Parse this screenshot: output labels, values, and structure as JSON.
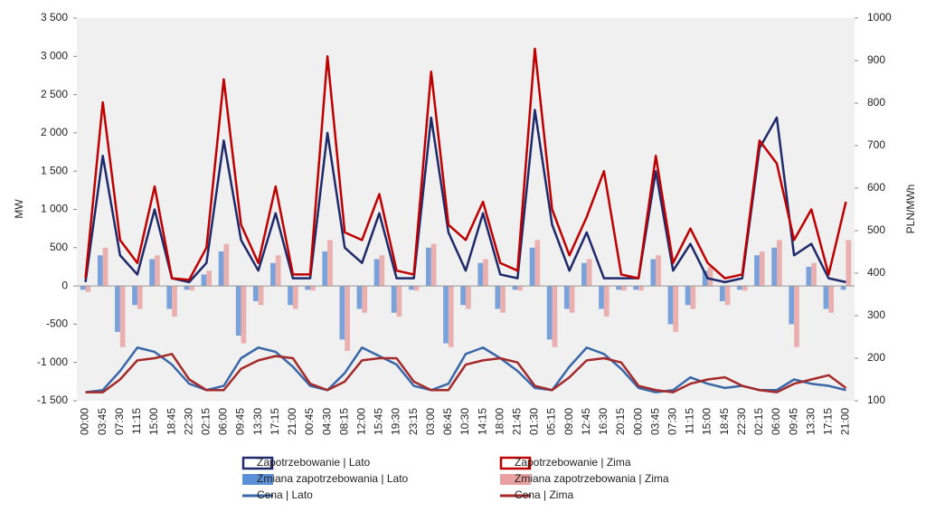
{
  "chart_data": {
    "type": "combo",
    "y_label": "MW",
    "y2_label": "PLN/MWh",
    "categories": [
      "00:00",
      "03:45",
      "07:30",
      "11:15",
      "15:00",
      "18:45",
      "22:30",
      "02:15",
      "06:00",
      "09:45",
      "13:30",
      "17:15",
      "21:00",
      "00:45",
      "04:30",
      "08:15",
      "12:00",
      "15:45",
      "19:30",
      "23:15",
      "03:00",
      "06:45",
      "10:30",
      "14:15",
      "18:00",
      "21:45",
      "01:30",
      "05:15",
      "09:00",
      "12:45",
      "16:30",
      "20:15",
      "00:00",
      "03:45",
      "07:30",
      "11:15",
      "15:00",
      "18:45",
      "22:30",
      "02:15",
      "06:00",
      "09:45",
      "13:30",
      "17:15",
      "21:00"
    ],
    "series": [
      {
        "name": "Zapotrzebowanie | Lato",
        "type": "line",
        "color": "#1f2a6b",
        "values": [
          50,
          1700,
          400,
          150,
          1000,
          100,
          50,
          300,
          1900,
          600,
          200,
          950,
          100,
          100,
          2000,
          500,
          300,
          950,
          100,
          100,
          2200,
          700,
          200,
          950,
          150,
          100,
          2300,
          800,
          200,
          700,
          100,
          100,
          100,
          1500,
          200,
          550,
          100,
          50,
          100,
          1800,
          2200,
          400,
          550,
          100,
          50
        ]
      },
      {
        "name": "Zapotrzebowanie | Zima",
        "type": "line",
        "color": "#c00000",
        "values": [
          100,
          2400,
          600,
          300,
          1300,
          100,
          80,
          500,
          2700,
          800,
          300,
          1300,
          150,
          150,
          3000,
          700,
          600,
          1200,
          200,
          150,
          2800,
          800,
          600,
          1100,
          300,
          200,
          3100,
          1000,
          400,
          900,
          1500,
          150,
          100,
          1700,
          300,
          750,
          300,
          100,
          150,
          1900,
          1600,
          600,
          1000,
          150,
          1100
        ]
      },
      {
        "name": "Zmiana zapotrzebowania | Lato",
        "type": "bar",
        "color": "#5b8fd6",
        "values": [
          -50,
          400,
          -600,
          -250,
          350,
          -300,
          -50,
          150,
          450,
          -650,
          -200,
          300,
          -250,
          -50,
          450,
          -700,
          -300,
          350,
          -350,
          -50,
          500,
          -750,
          -250,
          300,
          -300,
          -50,
          500,
          -700,
          -300,
          300,
          -300,
          -50,
          -50,
          350,
          -500,
          -250,
          200,
          -200,
          -50,
          400,
          500,
          -500,
          250,
          -300,
          -50
        ]
      },
      {
        "name": "Zmiana zapotrzebowania | Zima",
        "type": "bar",
        "color": "#e8a0a0",
        "values": [
          -80,
          500,
          -800,
          -300,
          400,
          -400,
          -60,
          200,
          550,
          -750,
          -250,
          400,
          -300,
          -60,
          600,
          -850,
          -350,
          400,
          -400,
          -60,
          550,
          -800,
          -300,
          350,
          -350,
          -60,
          600,
          -800,
          -350,
          350,
          -400,
          -60,
          -60,
          400,
          -600,
          -300,
          250,
          -250,
          -60,
          450,
          600,
          -800,
          300,
          -350,
          600
        ]
      },
      {
        "name": "Cena | Lato",
        "type": "line",
        "axis": "y2",
        "color": "#3a67a8",
        "values": [
          120,
          125,
          170,
          225,
          215,
          185,
          140,
          125,
          135,
          200,
          225,
          215,
          180,
          135,
          125,
          165,
          225,
          205,
          185,
          135,
          125,
          140,
          210,
          225,
          200,
          170,
          130,
          125,
          180,
          225,
          210,
          175,
          130,
          120,
          125,
          155,
          140,
          130,
          135,
          125,
          125,
          150,
          140,
          135,
          125
        ]
      },
      {
        "name": "Cena | Zima",
        "type": "line",
        "axis": "y2",
        "color": "#a52a2a",
        "values": [
          120,
          120,
          150,
          195,
          200,
          210,
          150,
          125,
          125,
          175,
          195,
          205,
          200,
          140,
          125,
          145,
          195,
          200,
          200,
          145,
          125,
          125,
          185,
          195,
          200,
          190,
          135,
          125,
          155,
          195,
          200,
          190,
          135,
          125,
          120,
          140,
          150,
          155,
          135,
          125,
          120,
          140,
          150,
          160,
          130
        ]
      }
    ],
    "ylim": [
      -1500,
      3500
    ],
    "yticks": [
      {
        "value": -1500,
        "label": "-1 500"
      },
      {
        "value": -1000,
        "label": "-1 000"
      },
      -500,
      0,
      500,
      {
        "value": 1000,
        "label": "1 000"
      },
      {
        "value": 1500,
        "label": "1 500"
      },
      {
        "value": 2000,
        "label": "2 000"
      },
      {
        "value": 2500,
        "label": "2 500"
      },
      {
        "value": 3000,
        "label": "3 000"
      },
      {
        "value": 3500,
        "label": "3 500"
      }
    ],
    "y2lim": [
      100,
      1000
    ],
    "y2ticks": [
      100,
      200,
      300,
      400,
      500,
      600,
      700,
      800,
      900,
      1000
    ]
  }
}
